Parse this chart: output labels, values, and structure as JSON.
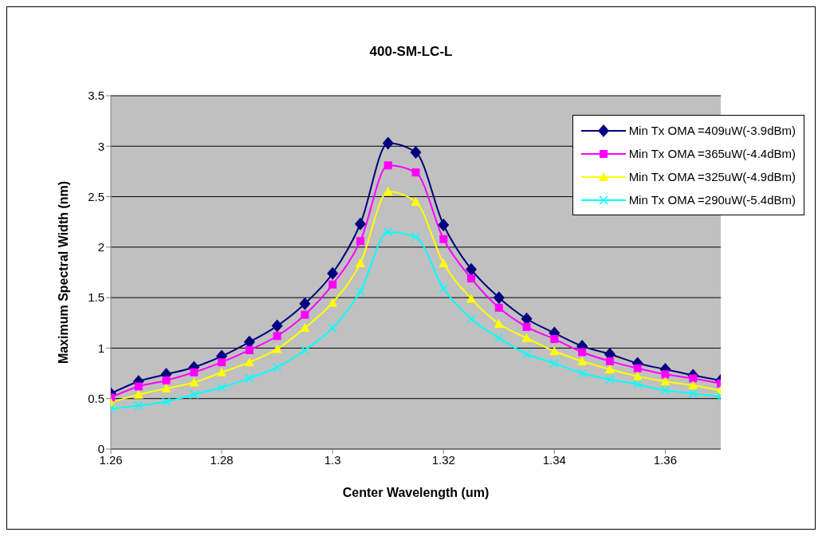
{
  "chart_data": {
    "type": "line",
    "title": "400-SM-LC-L",
    "xlabel": "Center Wavelength (um)",
    "ylabel": "Maximum Spectral Width (nm)",
    "x": [
      1.26,
      1.265,
      1.27,
      1.275,
      1.28,
      1.285,
      1.29,
      1.295,
      1.3,
      1.305,
      1.31,
      1.315,
      1.32,
      1.325,
      1.33,
      1.335,
      1.34,
      1.345,
      1.35,
      1.355,
      1.36,
      1.365,
      1.37
    ],
    "series": [
      {
        "name": "Min Tx OMA =409uW(-3.9dBm)",
        "color": "#000080",
        "marker": "diamond",
        "values": [
          0.55,
          0.67,
          0.74,
          0.81,
          0.92,
          1.06,
          1.22,
          1.44,
          1.74,
          2.23,
          3.03,
          2.94,
          2.22,
          1.78,
          1.5,
          1.29,
          1.15,
          1.02,
          0.94,
          0.85,
          0.79,
          0.73,
          0.68
        ]
      },
      {
        "name": "Min Tx OMA =365uW(-4.4dBm)",
        "color": "#ff00ff",
        "marker": "square",
        "values": [
          0.51,
          0.62,
          0.68,
          0.76,
          0.86,
          0.98,
          1.12,
          1.33,
          1.63,
          2.06,
          2.81,
          2.74,
          2.08,
          1.69,
          1.4,
          1.21,
          1.09,
          0.96,
          0.87,
          0.8,
          0.74,
          0.7,
          0.65
        ]
      },
      {
        "name": "Min Tx OMA =325uW(-4.9dBm)",
        "color": "#ffff00",
        "marker": "triangle",
        "values": [
          0.46,
          0.54,
          0.6,
          0.66,
          0.76,
          0.86,
          0.99,
          1.2,
          1.45,
          1.84,
          2.55,
          2.45,
          1.84,
          1.49,
          1.24,
          1.1,
          0.97,
          0.87,
          0.79,
          0.72,
          0.67,
          0.63,
          0.58
        ]
      },
      {
        "name": "Min Tx OMA =290uW(-5.4dBm)",
        "color": "#00ffff",
        "marker": "cross",
        "values": [
          0.4,
          0.43,
          0.47,
          0.54,
          0.61,
          0.7,
          0.81,
          0.98,
          1.2,
          1.56,
          2.15,
          2.1,
          1.59,
          1.29,
          1.1,
          0.94,
          0.85,
          0.75,
          0.69,
          0.64,
          0.58,
          0.55,
          0.52
        ]
      }
    ],
    "xlim": [
      1.26,
      1.37
    ],
    "xticks": [
      1.26,
      1.28,
      1.3,
      1.32,
      1.34,
      1.36
    ],
    "ylim": [
      0,
      3.5
    ],
    "yticks": [
      0,
      0.5,
      1,
      1.5,
      2,
      2.5,
      3,
      3.5
    ],
    "grid": "y",
    "legend": "top right",
    "line_style": "solid"
  }
}
